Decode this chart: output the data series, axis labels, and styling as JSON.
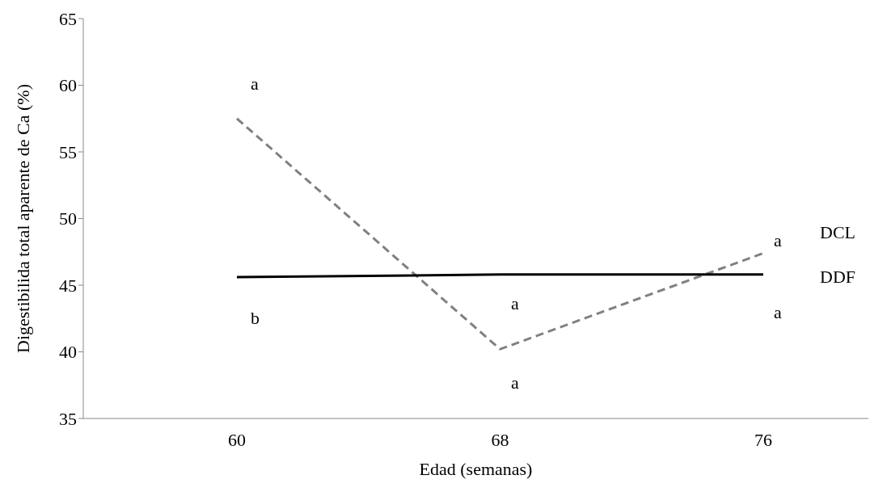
{
  "chart_data": {
    "type": "line",
    "xlabel": "Edad (semanas)",
    "ylabel": "Digestibilida total aparente de Ca (%)",
    "categories": [
      "60",
      "68",
      "76"
    ],
    "series": [
      {
        "name": "DCL",
        "color": "#808080",
        "line_style": "dashed",
        "values": [
          57.5,
          40.2,
          47.4
        ]
      },
      {
        "name": "DDF",
        "color": "#000000",
        "line_style": "solid",
        "values": [
          45.6,
          45.8,
          45.8
        ]
      }
    ],
    "ylim": [
      35,
      65
    ],
    "yticks": [
      35,
      40,
      45,
      50,
      55,
      60,
      65
    ],
    "grid": false,
    "legend": false,
    "marker": "none",
    "annotations": [
      "a",
      "b",
      "a",
      "a",
      "a",
      "a"
    ]
  }
}
